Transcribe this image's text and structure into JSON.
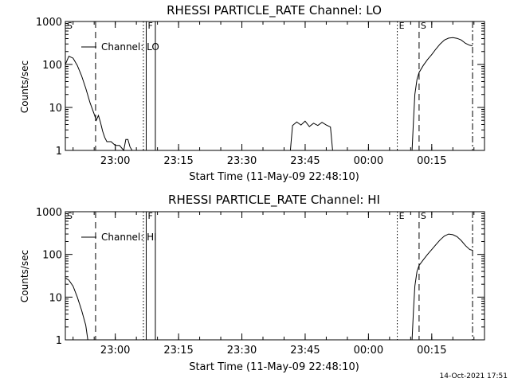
{
  "footer": {
    "timestamp": "14-Oct-2021 17:51"
  },
  "chart_data": [
    {
      "type": "line",
      "title": "RHESSI PARTICLE_RATE Channel: LO",
      "xlabel": "Start Time (11-May-09 22:48:10)",
      "ylabel": "Counts/sec",
      "y_scale": "log",
      "ylim": [
        1,
        1000
      ],
      "xlim": [
        "22:48:10",
        "00:27:30"
      ],
      "x_ticks": [
        "23:00",
        "23:15",
        "23:30",
        "23:45",
        "00:00",
        "00:15"
      ],
      "y_ticks": [
        "1",
        "10",
        "100",
        "1000"
      ],
      "legend": {
        "label": "Channel: LO",
        "position": "top-left"
      },
      "markers": [
        {
          "label": "S",
          "time": "22:48:10",
          "style": "solid"
        },
        {
          "label": "",
          "time": "22:55:20",
          "style": "dashed"
        },
        {
          "label": "",
          "time": "23:06:40",
          "style": "dotted"
        },
        {
          "label": "F",
          "time": "23:07:20",
          "style": "solid"
        },
        {
          "label": "",
          "time": "23:09:30",
          "style": "solid"
        },
        {
          "label": "E",
          "time": "00:06:50",
          "style": "dotted"
        },
        {
          "label": "S",
          "time": "00:12:00",
          "style": "dashed"
        },
        {
          "label": "",
          "time": "00:24:40",
          "style": "dashdot"
        }
      ],
      "segments": [
        {
          "x": [
            "22:48:10",
            "22:49:00",
            "22:50:00",
            "22:51:00",
            "22:52:00",
            "22:53:00",
            "22:54:00",
            "22:55:00",
            "22:55:30",
            "22:56:00",
            "22:56:30",
            "22:57:00",
            "22:57:30",
            "22:58:00",
            "22:59:00",
            "23:00:00",
            "23:01:00",
            "23:02:00",
            "23:02:30",
            "23:03:00",
            "23:03:30",
            "23:04:00"
          ],
          "y": [
            100,
            155,
            140,
            95,
            55,
            28,
            13,
            7,
            5,
            6.5,
            4.5,
            2.8,
            2,
            1.6,
            1.6,
            1.3,
            1.3,
            1,
            1.8,
            1.8,
            1.2,
            1
          ]
        },
        {
          "x": [
            "23:41:30",
            "23:42:00",
            "23:43:00",
            "23:44:00",
            "23:45:00",
            "23:46:00",
            "23:47:00",
            "23:48:00",
            "23:49:00",
            "23:50:00",
            "23:51:00",
            "23:51:30"
          ],
          "y": [
            1,
            3.8,
            4.6,
            3.9,
            4.8,
            3.6,
            4.3,
            3.8,
            4.5,
            3.9,
            3.5,
            1
          ]
        },
        {
          "x": [
            "00:10:20",
            "00:10:40",
            "00:11:00",
            "00:11:30",
            "00:12:00",
            "00:13:00",
            "00:14:00",
            "00:15:00",
            "00:16:00",
            "00:17:00",
            "00:18:00",
            "00:19:00",
            "00:20:00",
            "00:21:00",
            "00:22:00",
            "00:23:00",
            "00:24:00",
            "00:24:40"
          ],
          "y": [
            1,
            5,
            20,
            45,
            65,
            95,
            130,
            170,
            230,
            300,
            370,
            410,
            420,
            405,
            370,
            310,
            280,
            270
          ]
        }
      ]
    },
    {
      "type": "line",
      "title": "RHESSI PARTICLE_RATE Channel: HI",
      "xlabel": "Start Time (11-May-09 22:48:10)",
      "ylabel": "Counts/sec",
      "y_scale": "log",
      "ylim": [
        1,
        1000
      ],
      "xlim": [
        "22:48:10",
        "00:27:30"
      ],
      "x_ticks": [
        "23:00",
        "23:15",
        "23:30",
        "23:45",
        "00:00",
        "00:15"
      ],
      "y_ticks": [
        "1",
        "10",
        "100",
        "1000"
      ],
      "legend": {
        "label": "Channel: HI",
        "position": "top-left"
      },
      "markers": [
        {
          "label": "S",
          "time": "22:48:10",
          "style": "solid"
        },
        {
          "label": "",
          "time": "22:55:20",
          "style": "dashed"
        },
        {
          "label": "",
          "time": "23:06:40",
          "style": "dotted"
        },
        {
          "label": "F",
          "time": "23:07:20",
          "style": "solid"
        },
        {
          "label": "",
          "time": "23:09:30",
          "style": "solid"
        },
        {
          "label": "E",
          "time": "00:06:50",
          "style": "dotted"
        },
        {
          "label": "S",
          "time": "00:12:00",
          "style": "dashed"
        },
        {
          "label": "",
          "time": "00:24:40",
          "style": "dashdot"
        }
      ],
      "segments": [
        {
          "x": [
            "22:48:10",
            "22:49:00",
            "22:50:00",
            "22:51:00",
            "22:52:00",
            "22:53:00",
            "22:53:30"
          ],
          "y": [
            28,
            25,
            18,
            10,
            5,
            2.2,
            1
          ]
        },
        {
          "x": [
            "00:10:20",
            "00:10:40",
            "00:11:00",
            "00:11:30",
            "00:12:00",
            "00:13:00",
            "00:14:00",
            "00:15:00",
            "00:16:00",
            "00:17:00",
            "00:18:00",
            "00:19:00",
            "00:20:00",
            "00:21:00",
            "00:22:00",
            "00:23:00",
            "00:24:00",
            "00:24:40"
          ],
          "y": [
            1,
            5,
            18,
            40,
            55,
            75,
            100,
            130,
            170,
            220,
            270,
            300,
            290,
            260,
            210,
            160,
            130,
            125
          ]
        }
      ]
    }
  ]
}
